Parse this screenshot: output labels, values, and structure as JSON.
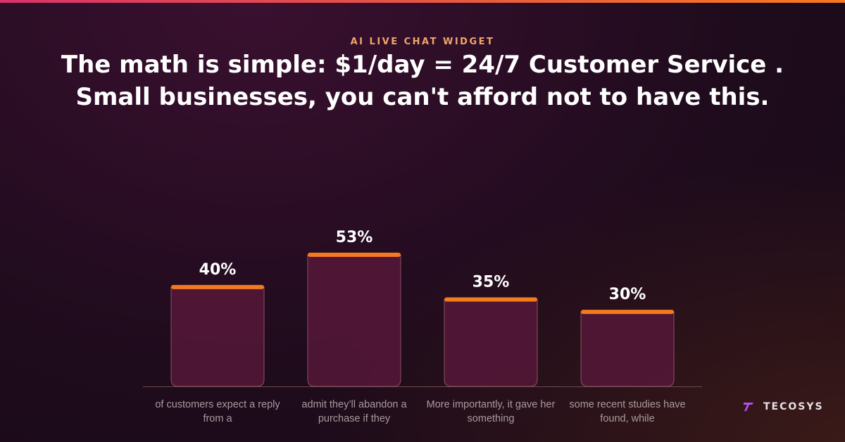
{
  "eyebrow": "AI LIVE CHAT WIDGET",
  "brand": "TECOSYS",
  "chart_data": {
    "type": "bar",
    "title": [
      "The math is simple: $1/day = 24/7 Customer Service .",
      "Small businesses, you can't afford not to have this."
    ],
    "categories": [
      "of customers expect a reply from a",
      "admit they’ll abandon a purchase if they",
      "More importantly, it gave her something",
      "some recent studies have found, while"
    ],
    "values": [
      40,
      53,
      35,
      30
    ],
    "value_labels": [
      "40%",
      "53%",
      "35%",
      "30%"
    ],
    "color": "#561838",
    "cap_color": "#f47a1f"
  }
}
